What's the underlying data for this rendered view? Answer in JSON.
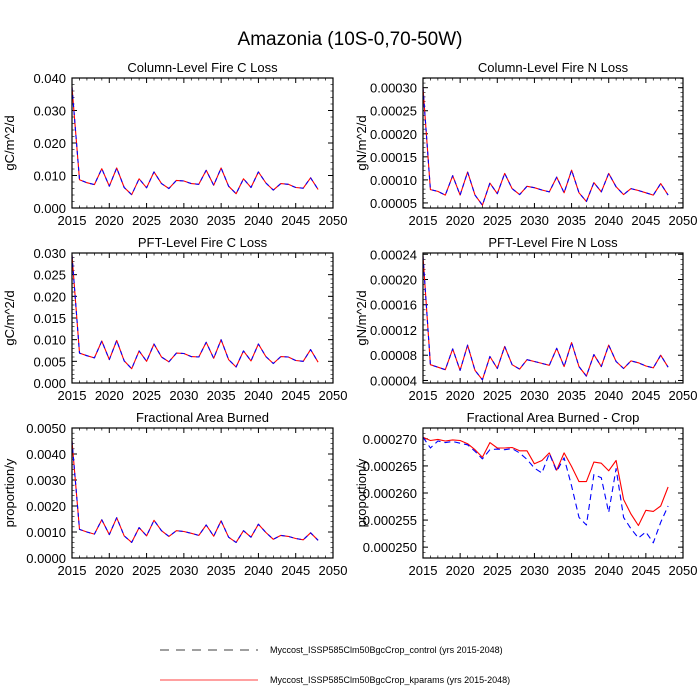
{
  "chart_data": {
    "type": "line",
    "title": "Amazonia (10S-0,70-50W)",
    "x": [
      2015,
      2016,
      2017,
      2018,
      2019,
      2020,
      2021,
      2022,
      2023,
      2024,
      2025,
      2026,
      2027,
      2028,
      2029,
      2030,
      2031,
      2032,
      2033,
      2034,
      2035,
      2036,
      2037,
      2038,
      2039,
      2040,
      2041,
      2042,
      2043,
      2044,
      2045,
      2046,
      2047,
      2048
    ],
    "xlim": [
      2015,
      2050
    ],
    "xticks": [
      "2015",
      "2020",
      "2025",
      "2030",
      "2035",
      "2040",
      "2045",
      "2050"
    ],
    "legend": {
      "placement": "bottom",
      "entries": [
        {
          "label": "Myccost_ISSP585Clm50BgcCrop_control (yrs 2015-2048)",
          "color": "#0000ff",
          "style": "dashed"
        },
        {
          "label": "Myccost_ISSP585Clm50BgcCrop_kparams (yrs 2015-2048)",
          "color": "#ff0000",
          "style": "solid"
        }
      ]
    },
    "panels": [
      {
        "title": "Column-Level Fire C Loss",
        "ylabel": "gC/m^2/d",
        "ylim": [
          0,
          0.04
        ],
        "yticks": [
          0,
          0.01,
          0.02,
          0.03,
          0.04
        ],
        "ytick_labels": [
          "0.000",
          "0.010",
          "0.020",
          "0.030",
          "0.040"
        ],
        "series": [
          {
            "name": "control",
            "values": [
              0.0372,
              0.0087,
              0.0078,
              0.0072,
              0.0121,
              0.0067,
              0.0123,
              0.0063,
              0.0041,
              0.009,
              0.0062,
              0.0111,
              0.0075,
              0.006,
              0.0085,
              0.0083,
              0.0075,
              0.0073,
              0.0116,
              0.007,
              0.0123,
              0.0067,
              0.0044,
              0.009,
              0.0063,
              0.0111,
              0.0077,
              0.0055,
              0.0075,
              0.0073,
              0.0063,
              0.0061,
              0.0093,
              0.0057
            ]
          },
          {
            "name": "kparams",
            "values": [
              0.0372,
              0.0087,
              0.0078,
              0.0072,
              0.0121,
              0.0067,
              0.0123,
              0.0063,
              0.0041,
              0.009,
              0.0062,
              0.0111,
              0.0075,
              0.006,
              0.0085,
              0.0083,
              0.0075,
              0.0073,
              0.0116,
              0.007,
              0.0123,
              0.0067,
              0.0044,
              0.009,
              0.0063,
              0.0111,
              0.0077,
              0.0055,
              0.0075,
              0.0073,
              0.0063,
              0.0061,
              0.0093,
              0.0057
            ]
          }
        ]
      },
      {
        "title": "Column-Level Fire N Loss",
        "ylabel": "gN/m^2/d",
        "ylim": [
          3.9e-05,
          0.000321
        ],
        "yticks": [
          5e-05,
          0.0001,
          0.00015,
          0.0002,
          0.00025,
          0.0003
        ],
        "ytick_labels": [
          "0.00005",
          "0.00010",
          "0.00015",
          "0.00020",
          "0.00025",
          "0.00030"
        ],
        "series": [
          {
            "name": "control",
            "values": [
              0.0003,
              7.9e-05,
              7.5e-05,
              6.7e-05,
              0.000109,
              6.7e-05,
              0.000117,
              6.7e-05,
              4.5e-05,
              9.3e-05,
              7e-05,
              0.000114,
              8.1e-05,
              6.8e-05,
              8.6e-05,
              8.3e-05,
              7.8e-05,
              7.4e-05,
              0.000106,
              7.2e-05,
              0.000121,
              7.2e-05,
              5.3e-05,
              9.4e-05,
              7.4e-05,
              0.000114,
              8.5e-05,
              6.8e-05,
              8.1e-05,
              7.7e-05,
              7.2e-05,
              6.7e-05,
              9.2e-05,
              6.7e-05
            ]
          },
          {
            "name": "kparams",
            "values": [
              0.0003,
              7.9e-05,
              7.5e-05,
              6.7e-05,
              0.000109,
              6.7e-05,
              0.000117,
              6.7e-05,
              4.5e-05,
              9.3e-05,
              7e-05,
              0.000114,
              8.1e-05,
              6.8e-05,
              8.6e-05,
              8.3e-05,
              7.8e-05,
              7.4e-05,
              0.000106,
              7.2e-05,
              0.000121,
              7.2e-05,
              5.3e-05,
              9.4e-05,
              7.4e-05,
              0.000114,
              8.5e-05,
              6.8e-05,
              8.1e-05,
              7.7e-05,
              7.2e-05,
              6.7e-05,
              9.2e-05,
              6.7e-05
            ]
          }
        ]
      },
      {
        "title": "PFT-Level Fire C Loss",
        "ylabel": "gC/m^2/d",
        "ylim": [
          0,
          0.03
        ],
        "yticks": [
          0,
          0.005,
          0.01,
          0.015,
          0.02,
          0.025,
          0.03
        ],
        "ytick_labels": [
          "0.000",
          "0.005",
          "0.010",
          "0.015",
          "0.020",
          "0.025",
          "0.030"
        ],
        "series": [
          {
            "name": "control",
            "values": [
              0.0295,
              0.0069,
              0.0063,
              0.0058,
              0.0097,
              0.0054,
              0.0098,
              0.0051,
              0.0033,
              0.0074,
              0.005,
              0.009,
              0.006,
              0.0049,
              0.0069,
              0.0068,
              0.0061,
              0.006,
              0.0094,
              0.0057,
              0.01,
              0.0054,
              0.0037,
              0.0074,
              0.0051,
              0.009,
              0.0061,
              0.0045,
              0.0061,
              0.006,
              0.0052,
              0.005,
              0.0077,
              0.0048
            ]
          },
          {
            "name": "kparams",
            "values": [
              0.0295,
              0.0069,
              0.0063,
              0.0058,
              0.0097,
              0.0054,
              0.0098,
              0.0051,
              0.0033,
              0.0074,
              0.005,
              0.009,
              0.006,
              0.0049,
              0.0069,
              0.0068,
              0.0061,
              0.006,
              0.0094,
              0.0057,
              0.01,
              0.0054,
              0.0037,
              0.0074,
              0.0051,
              0.009,
              0.0061,
              0.0045,
              0.0061,
              0.006,
              0.0052,
              0.005,
              0.0077,
              0.0048
            ]
          }
        ]
      },
      {
        "title": "PFT-Level Fire N Loss",
        "ylabel": "gN/m^2/d",
        "ylim": [
          3.6e-05,
          0.000242
        ],
        "yticks": [
          4e-05,
          8e-05,
          0.00012,
          0.00016,
          0.0002,
          0.00024
        ],
        "ytick_labels": [
          "0.00004",
          "0.00008",
          "0.00012",
          "0.00016",
          "0.00020",
          "0.00024"
        ],
        "series": [
          {
            "name": "control",
            "values": [
              0.000237,
              6.5e-05,
              6.1e-05,
              5.7e-05,
              9e-05,
              5.6e-05,
              9.6e-05,
              5.6e-05,
              4.1e-05,
              7.8e-05,
              5.9e-05,
              9.4e-05,
              6.5e-05,
              5.8e-05,
              7.3e-05,
              7e-05,
              6.7e-05,
              6.4e-05,
              9.1e-05,
              6.2e-05,
              0.0001,
              6.2e-05,
              4.7e-05,
              8.1e-05,
              6.2e-05,
              9.6e-05,
              7e-05,
              5.9e-05,
              7.1e-05,
              6.8e-05,
              6.3e-05,
              6e-05,
              8e-05,
              6.1e-05
            ]
          },
          {
            "name": "kparams",
            "values": [
              0.000237,
              6.5e-05,
              6.1e-05,
              5.7e-05,
              9e-05,
              5.6e-05,
              9.6e-05,
              5.6e-05,
              4.1e-05,
              7.8e-05,
              5.9e-05,
              9.4e-05,
              6.5e-05,
              5.8e-05,
              7.3e-05,
              7e-05,
              6.7e-05,
              6.4e-05,
              9.1e-05,
              6.2e-05,
              0.0001,
              6.2e-05,
              4.7e-05,
              8.1e-05,
              6.2e-05,
              9.6e-05,
              7e-05,
              5.9e-05,
              7.1e-05,
              6.8e-05,
              6.3e-05,
              6e-05,
              8e-05,
              6.1e-05
            ]
          }
        ]
      },
      {
        "title": "Fractional Area Burned",
        "ylabel": "proportion/y",
        "ylim": [
          0,
          0.005
        ],
        "yticks": [
          0,
          0.001,
          0.002,
          0.003,
          0.004,
          0.005
        ],
        "ytick_labels": [
          "0.0000",
          "0.0010",
          "0.0020",
          "0.0030",
          "0.0040",
          "0.0050"
        ],
        "series": [
          {
            "name": "control",
            "values": [
              0.0045,
              0.0011,
              0.001,
              0.00092,
              0.00147,
              0.0009,
              0.00155,
              0.00085,
              0.0006,
              0.00117,
              0.00085,
              0.00145,
              0.00105,
              0.00083,
              0.00105,
              0.00102,
              0.00095,
              0.00087,
              0.00127,
              0.00084,
              0.00143,
              0.0008,
              0.0006,
              0.00105,
              0.0008,
              0.0013,
              0.00098,
              0.00072,
              0.00087,
              0.00083,
              0.00075,
              0.0007,
              0.00097,
              0.00068
            ]
          },
          {
            "name": "kparams",
            "values": [
              0.0045,
              0.0011,
              0.001,
              0.00092,
              0.00147,
              0.0009,
              0.00155,
              0.00085,
              0.0006,
              0.00117,
              0.00085,
              0.00145,
              0.00105,
              0.00083,
              0.00105,
              0.00102,
              0.00095,
              0.00087,
              0.00127,
              0.00084,
              0.00143,
              0.0008,
              0.0006,
              0.00105,
              0.0008,
              0.0013,
              0.00098,
              0.00072,
              0.00087,
              0.00083,
              0.00075,
              0.0007,
              0.00097,
              0.00068
            ]
          }
        ]
      },
      {
        "title": "Fractional Area Burned - Crop",
        "ylabel": "proportion/y",
        "ylim": [
          0.000248,
          0.000272
        ],
        "yticks": [
          0.00025,
          0.000255,
          0.00026,
          0.000265,
          0.00027
        ],
        "ytick_labels": [
          "0.000250",
          "0.000255",
          "0.000260",
          "0.000265",
          "0.000270"
        ],
        "series": [
          {
            "name": "control",
            "values": [
              0.0002703,
              0.0002683,
              0.0002696,
              0.0002693,
              0.0002695,
              0.0002692,
              0.0002689,
              0.0002677,
              0.0002663,
              0.000268,
              0.0002681,
              0.000268,
              0.0002682,
              0.0002674,
              0.0002662,
              0.0002646,
              0.0002637,
              0.0002673,
              0.000264,
              0.0002665,
              0.0002613,
              0.0002555,
              0.0002541,
              0.0002634,
              0.0002628,
              0.0002564,
              0.0002645,
              0.0002555,
              0.0002534,
              0.0002517,
              0.0002528,
              0.0002508,
              0.0002546,
              0.0002576
            ]
          },
          {
            "name": "kparams",
            "values": [
              0.0002703,
              0.0002697,
              0.0002699,
              0.0002696,
              0.0002698,
              0.0002697,
              0.0002691,
              0.000268,
              0.0002666,
              0.0002693,
              0.0002683,
              0.0002683,
              0.0002684,
              0.0002678,
              0.0002678,
              0.0002654,
              0.000266,
              0.0002674,
              0.0002642,
              0.0002674,
              0.0002649,
              0.0002621,
              0.0002621,
              0.0002657,
              0.0002655,
              0.0002641,
              0.000266,
              0.0002588,
              0.0002561,
              0.000254,
              0.0002568,
              0.0002566,
              0.0002576,
              0.0002611
            ]
          }
        ]
      }
    ]
  }
}
